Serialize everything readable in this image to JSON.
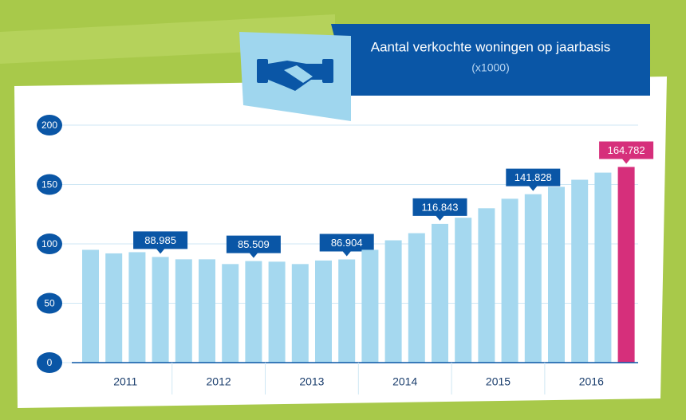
{
  "chart_data": {
    "type": "bar",
    "title": "Aantal verkochte woningen op jaarbasis",
    "subtitle": "(x1000)",
    "groups": [
      "2011",
      "2012",
      "2013",
      "2014",
      "2015",
      "2016"
    ],
    "values": [
      95,
      92,
      93,
      88.985,
      87,
      87,
      83,
      85.509,
      85,
      83,
      86,
      86.904,
      95,
      103,
      109,
      116.843,
      122,
      130,
      138,
      141.828,
      148,
      154,
      160,
      164.782
    ],
    "value_labels": [
      null,
      null,
      null,
      "88.985",
      null,
      null,
      null,
      "85.509",
      null,
      null,
      null,
      "86.904",
      null,
      null,
      null,
      "116.843",
      null,
      null,
      null,
      "141.828",
      null,
      null,
      null,
      "164.782"
    ],
    "colors": [
      "#a5d8ef",
      "#a5d8ef",
      "#a5d8ef",
      "#a5d8ef",
      "#a5d8ef",
      "#a5d8ef",
      "#a5d8ef",
      "#a5d8ef",
      "#a5d8ef",
      "#a5d8ef",
      "#a5d8ef",
      "#a5d8ef",
      "#a5d8ef",
      "#a5d8ef",
      "#a5d8ef",
      "#a5d8ef",
      "#a5d8ef",
      "#a5d8ef",
      "#a5d8ef",
      "#a5d8ef",
      "#a5d8ef",
      "#a5d8ef",
      "#a5d8ef",
      "#d62f7b"
    ],
    "ylim": [
      0,
      200
    ],
    "yticks": [
      0,
      50,
      100,
      150,
      200
    ],
    "grid": true
  }
}
